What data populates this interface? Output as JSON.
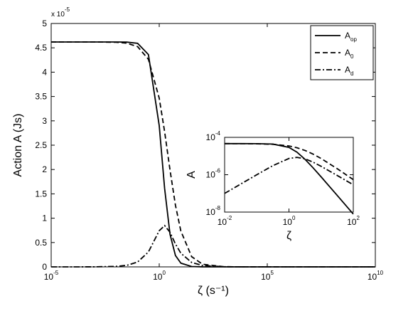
{
  "chart_data": [
    {
      "type": "line",
      "xscale": "log",
      "ylabel": "Action A (Js)",
      "xlabel": "ζ (s⁻¹)",
      "y_multiplier": {
        "label": "x 10",
        "exponent": "-5"
      },
      "x": [
        1e-05,
        0.0001,
        0.001,
        0.01,
        0.0316,
        0.1,
        0.316,
        1,
        1.778,
        3.162,
        5.623,
        10,
        31.62,
        100,
        1000,
        10000,
        100000,
        10000000,
        10000000000
      ],
      "series": [
        {
          "name": "A",
          "subscript": "op",
          "color": "#000000",
          "dash": "solid",
          "values": [
            4.62,
            4.62,
            4.62,
            4.62,
            4.617,
            4.593,
            4.362,
            2.902,
            1.609,
            0.668,
            0.234,
            0.0767,
            0.0078,
            0.00078,
            7.8e-06,
            7.8e-08,
            8e-10,
            8e-14,
            8e-20
          ]
        },
        {
          "name": "A",
          "subscript": "0",
          "color": "#000000",
          "dash": "dashed",
          "values": [
            4.62,
            4.62,
            4.62,
            4.614,
            4.596,
            4.525,
            4.264,
            3.466,
            2.776,
            1.987,
            1.268,
            0.737,
            0.21,
            0.0546,
            0.00349,
            0.00022,
            1.39e-05,
            5.5e-08,
            1.4e-11
          ]
        },
        {
          "name": "A",
          "subscript": "d",
          "color": "#000000",
          "dash": "dashdot",
          "values": [
            1e-05,
            0.0001,
            0.001,
            0.01,
            0.0316,
            0.0998,
            0.306,
            0.743,
            0.849,
            0.709,
            0.471,
            0.281,
            0.0911,
            0.0289,
            0.00289,
            0.000289,
            2.89e-05,
            2.9e-07,
            2.9e-10
          ]
        }
      ],
      "xlim": [
        1e-05,
        10000000000
      ],
      "xticks": [
        {
          "value": 1e-05,
          "label": "10",
          "exponent": "-5"
        },
        {
          "value": 1,
          "label": "10",
          "exponent": "0"
        },
        {
          "value": 100000,
          "label": "10",
          "exponent": "5"
        },
        {
          "value": 10000000000,
          "label": "10",
          "exponent": "10"
        }
      ],
      "ylim": [
        0,
        5
      ],
      "yticks": [
        0,
        0.5,
        1,
        1.5,
        2,
        2.5,
        3,
        3.5,
        4,
        4.5,
        5
      ],
      "legend": "upper right"
    },
    {
      "type": "line",
      "xscale": "log",
      "yscale": "log",
      "ylabel": "A",
      "xlabel": "ζ",
      "x": [
        0.01,
        0.0316,
        0.1,
        0.316,
        1,
        1.778,
        3.162,
        5.623,
        10,
        31.62,
        100
      ],
      "series": [
        {
          "color": "#000000",
          "dash": "solid",
          "values": [
            4.62e-05,
            4.617e-05,
            4.593e-05,
            4.362e-05,
            2.902e-05,
            1.609e-05,
            6.68e-06,
            2.34e-06,
            7.67e-07,
            7.8e-08,
            7.8e-09
          ]
        },
        {
          "color": "#000000",
          "dash": "dashed",
          "values": [
            4.614e-05,
            4.596e-05,
            4.525e-05,
            4.264e-05,
            3.466e-05,
            2.776e-05,
            1.987e-05,
            1.268e-05,
            7.37e-06,
            2.1e-06,
            5.46e-07
          ]
        },
        {
          "color": "#000000",
          "dash": "dashdot",
          "values": [
            1e-07,
            3.16e-07,
            9.98e-07,
            3.06e-06,
            7.43e-06,
            8.49e-06,
            7.09e-06,
            4.71e-06,
            2.81e-06,
            9.11e-07,
            2.89e-07
          ]
        }
      ],
      "xlim": [
        0.01,
        100
      ],
      "xticks": [
        {
          "value": 0.01,
          "label": "10",
          "exponent": "-2"
        },
        {
          "value": 1,
          "label": "10",
          "exponent": "0"
        },
        {
          "value": 100,
          "label": "10",
          "exponent": "2"
        }
      ],
      "ylim": [
        1e-08,
        0.0001
      ],
      "yticks": [
        {
          "value": 1e-08,
          "label": "10",
          "exponent": "-8"
        },
        {
          "value": 1e-06,
          "label": "10",
          "exponent": "-6"
        },
        {
          "value": 0.0001,
          "label": "10",
          "exponent": "-4"
        }
      ]
    }
  ]
}
